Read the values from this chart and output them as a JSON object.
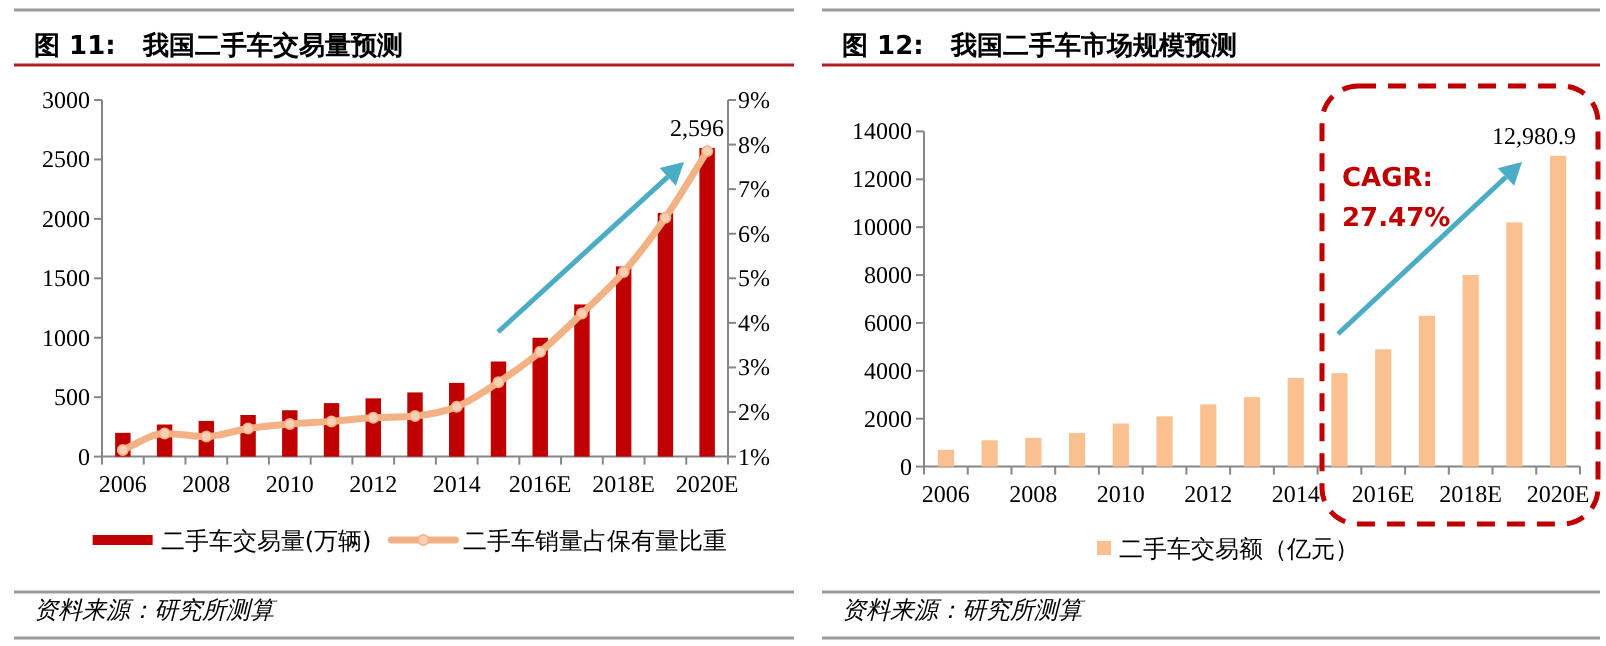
{
  "chart_data": [
    {
      "type": "bar",
      "title": "图 11:   我国二手车交易量预测",
      "categories": [
        "2006",
        null,
        "2008",
        null,
        "2010",
        null,
        "2012",
        null,
        "2014",
        null,
        "2016E",
        null,
        "2018E",
        null,
        "2020E"
      ],
      "series": [
        {
          "name": "二手车交易量(万辆)",
          "color": "#c00000",
          "values": [
            200,
            270,
            300,
            350,
            390,
            450,
            490,
            540,
            620,
            800,
            1000,
            1280,
            1600,
            2050,
            2596
          ],
          "value_labels": [
            null,
            null,
            null,
            null,
            null,
            null,
            null,
            null,
            null,
            null,
            null,
            null,
            null,
            null,
            "2,596"
          ]
        },
        {
          "name": "二手车销量占保有量比重",
          "type": "line",
          "axis": "y2",
          "marker": "circle",
          "color": "#f4b183",
          "values": [
            1.15,
            1.52,
            1.45,
            1.63,
            1.73,
            1.79,
            1.87,
            1.91,
            2.12,
            2.67,
            3.35,
            4.21,
            5.14,
            6.36,
            7.85
          ]
        }
      ],
      "ylim": [
        0,
        3000
      ],
      "yticks": [
        0,
        500,
        1000,
        1500,
        2000,
        2500,
        3000
      ],
      "y2lim": [
        1,
        9
      ],
      "y2ticks": [
        {
          "value": 1,
          "label": "1%"
        },
        {
          "value": 2,
          "label": "2%"
        },
        {
          "value": 3,
          "label": "3%"
        },
        {
          "value": 4,
          "label": "4%"
        },
        {
          "value": 5,
          "label": "5%"
        },
        {
          "value": 6,
          "label": "6%"
        },
        {
          "value": 7,
          "label": "7%"
        },
        {
          "value": 8,
          "label": "8%"
        },
        {
          "value": 9,
          "label": "9%"
        }
      ],
      "legend": "bottom",
      "annotations": [
        "资料来源：研究所测算"
      ]
    },
    {
      "type": "bar",
      "title": "图 12:   我国二手车市场规模预测",
      "categories": [
        "2006",
        null,
        "2008",
        null,
        "2010",
        null,
        "2012",
        null,
        "2014",
        null,
        "2016E",
        null,
        "2018E",
        null,
        "2020E"
      ],
      "series": [
        {
          "name": "二手车交易额（亿元）",
          "color": "#fac090",
          "values": [
            700,
            1100,
            1200,
            1400,
            1800,
            2100,
            2600,
            2900,
            3700,
            3900,
            4900,
            6300,
            8000,
            10200,
            12980.9
          ],
          "value_labels": [
            null,
            null,
            null,
            null,
            null,
            null,
            null,
            null,
            null,
            null,
            null,
            null,
            null,
            null,
            "12,980.9"
          ]
        }
      ],
      "ylim": [
        0,
        14000
      ],
      "yticks": [
        0,
        2000,
        4000,
        6000,
        8000,
        10000,
        12000,
        14000
      ],
      "legend": "bottom",
      "annotations": [
        "CAGR: 27.47%",
        "资料来源：研究所测算"
      ]
    }
  ]
}
